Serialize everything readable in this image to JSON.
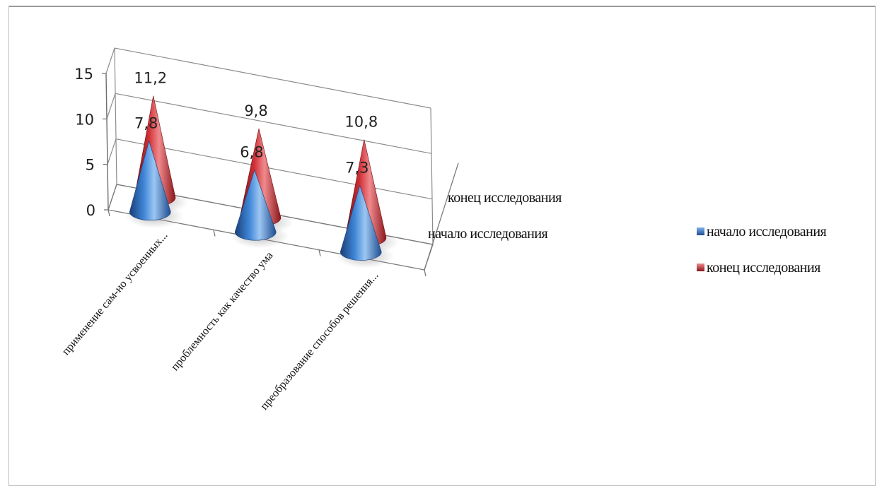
{
  "chart_data": {
    "type": "3d-cone",
    "categories": [
      "применение сам-но усвоенных...",
      "проблемность как качество ума",
      "преобразование способов решения..."
    ],
    "series": [
      {
        "name": "начало исследования",
        "values": [
          7.8,
          6.8,
          7.3
        ],
        "labels": [
          "7,8",
          "6,8",
          "7,3"
        ],
        "color": "#2e6fc0"
      },
      {
        "name": "конец исследования",
        "values": [
          11.2,
          9.8,
          10.8
        ],
        "labels": [
          "11,2",
          "9,8",
          "10,8"
        ],
        "color": "#c0282d"
      }
    ],
    "ylim": [
      0,
      15
    ],
    "yticks": [
      0,
      5,
      10,
      15
    ],
    "depth_labels": [
      "конец исследования",
      "начало исследования"
    ],
    "grid": true,
    "legend_position": "right"
  }
}
